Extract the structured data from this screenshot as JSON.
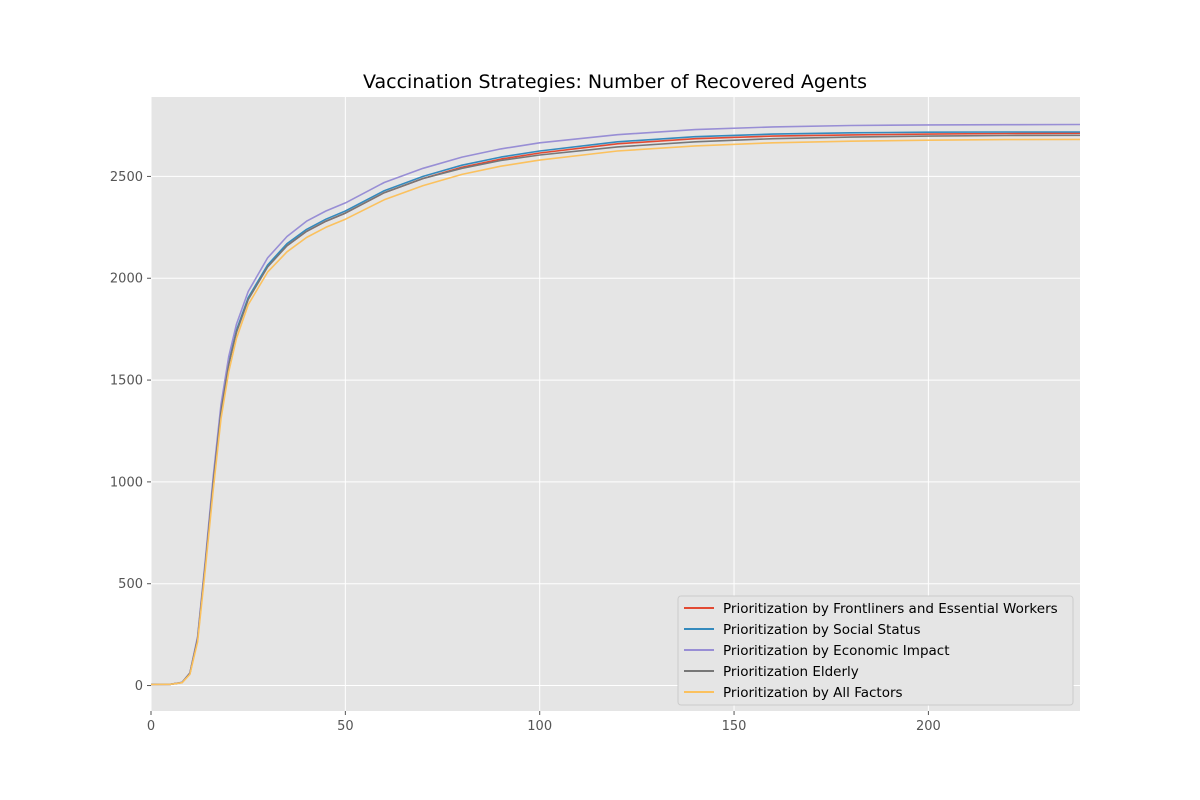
{
  "chart_data": {
    "type": "line",
    "title": "Vaccination Strategies: Number of Recovered Agents",
    "xlabel": "",
    "ylabel": "",
    "xlim": [
      0,
      239
    ],
    "ylim": [
      -125,
      2890
    ],
    "xticks": [
      0,
      50,
      100,
      150,
      200
    ],
    "yticks": [
      0,
      500,
      1000,
      1500,
      2000,
      2500
    ],
    "grid": true,
    "legend_position": "lower-right",
    "x": [
      0,
      5,
      8,
      10,
      12,
      14,
      16,
      18,
      20,
      22,
      25,
      30,
      35,
      40,
      45,
      50,
      60,
      70,
      80,
      90,
      100,
      120,
      140,
      160,
      180,
      200,
      220,
      239
    ],
    "series": [
      {
        "name": "Prioritization by Frontliners and Essential Workers",
        "color": "#e24a33",
        "values": [
          5,
          6,
          15,
          60,
          230,
          600,
          1000,
          1350,
          1580,
          1740,
          1900,
          2060,
          2160,
          2230,
          2280,
          2320,
          2420,
          2490,
          2545,
          2585,
          2615,
          2660,
          2685,
          2698,
          2704,
          2708,
          2711,
          2712
        ]
      },
      {
        "name": "Prioritization by Social Status",
        "color": "#348abd",
        "values": [
          5,
          6,
          15,
          60,
          232,
          605,
          1005,
          1355,
          1585,
          1745,
          1905,
          2065,
          2170,
          2240,
          2290,
          2330,
          2430,
          2500,
          2555,
          2595,
          2625,
          2670,
          2695,
          2708,
          2714,
          2717,
          2718,
          2718
        ]
      },
      {
        "name": "Prioritization by Economic Impact",
        "color": "#988ed5",
        "values": [
          5,
          6,
          16,
          62,
          240,
          620,
          1025,
          1380,
          1615,
          1775,
          1935,
          2100,
          2205,
          2280,
          2330,
          2370,
          2470,
          2540,
          2595,
          2635,
          2665,
          2705,
          2730,
          2743,
          2750,
          2753,
          2754,
          2755
        ]
      },
      {
        "name": "Prioritization Elderly",
        "color": "#777777",
        "values": [
          5,
          6,
          15,
          60,
          228,
          598,
          995,
          1345,
          1575,
          1735,
          1895,
          2055,
          2160,
          2230,
          2280,
          2320,
          2420,
          2490,
          2540,
          2578,
          2605,
          2645,
          2670,
          2685,
          2693,
          2698,
          2701,
          2702
        ]
      },
      {
        "name": "Prioritization by All Factors",
        "color": "#fbc15e",
        "values": [
          5,
          6,
          14,
          55,
          215,
          575,
          960,
          1310,
          1540,
          1705,
          1870,
          2030,
          2130,
          2200,
          2250,
          2290,
          2385,
          2455,
          2510,
          2550,
          2580,
          2625,
          2650,
          2665,
          2673,
          2678,
          2681,
          2682
        ]
      }
    ]
  }
}
